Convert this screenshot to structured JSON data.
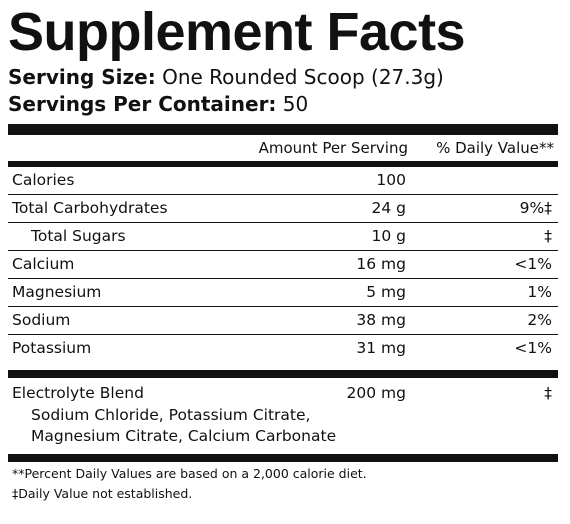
{
  "title": "Supplement Facts",
  "serving_size": {
    "label": "Serving Size:",
    "value": " One Rounded Scoop (27.3g)"
  },
  "servings_per_container": {
    "label": "Servings Per Container:",
    "value": " 50"
  },
  "header": {
    "amount_per_serving": "Amount Per Serving",
    "daily_value": "% Daily Value**"
  },
  "rows": [
    {
      "name": "Calories",
      "amount": "100",
      "dv": "",
      "indent": false
    },
    {
      "name": "Total Carbohydrates",
      "amount": "24 g",
      "dv": "9%‡",
      "indent": false
    },
    {
      "name": "Total Sugars",
      "amount": "10 g",
      "dv": "‡",
      "indent": true
    },
    {
      "name": "Calcium",
      "amount": "16 mg",
      "dv": "<1%",
      "indent": false
    },
    {
      "name": "Magnesium",
      "amount": "5 mg",
      "dv": "1%",
      "indent": false
    },
    {
      "name": "Sodium",
      "amount": "38 mg",
      "dv": "2%",
      "indent": false
    },
    {
      "name": "Potassium",
      "amount": "31 mg",
      "dv": "<1%",
      "indent": false
    }
  ],
  "blend": {
    "name": "Electrolyte Blend",
    "amount": "200 mg",
    "dv": "‡",
    "ingredients": "Sodium Chloride, Potassium Citrate, Magnesium Citrate, Calcium Carbonate"
  },
  "footnotes": {
    "percent_note": "**Percent Daily Values are based on a 2,000 calorie diet.",
    "not_established": "‡Daily Value not established."
  }
}
